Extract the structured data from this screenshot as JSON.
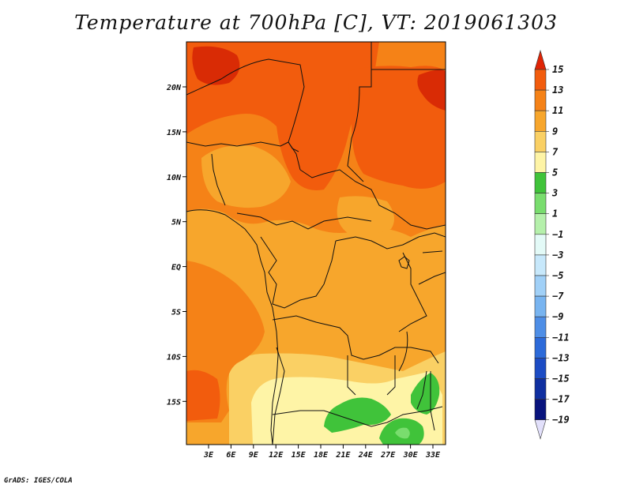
{
  "title": "Temperature at 700hPa [C], VT: 2019061303",
  "credit": "GrADS: IGES/COLA",
  "map": {
    "lat_labels": [
      "20N",
      "15N",
      "10N",
      "5N",
      "EQ",
      "5S",
      "10S",
      "15S"
    ],
    "lon_labels": [
      "3E",
      "6E",
      "9E",
      "12E",
      "15E",
      "18E",
      "21E",
      "24E",
      "27E",
      "30E",
      "33E"
    ],
    "lat_range": [
      -20,
      24
    ],
    "lon_range": [
      0,
      34
    ],
    "variable": "Temperature at 700hPa",
    "units": "C"
  },
  "colorbar": {
    "labels": [
      "15",
      "13",
      "11",
      "9",
      "7",
      "5",
      "3",
      "1",
      "−1",
      "−3",
      "−5",
      "−7",
      "−9",
      "−11",
      "−13",
      "−15",
      "−17",
      "−19"
    ],
    "colors": [
      "#d92b05",
      "#f25c0d",
      "#f58217",
      "#f7a62c",
      "#fad064",
      "#fef4a6",
      "#40c33a",
      "#79dd6e",
      "#b5f0ab",
      "#e3faf7",
      "#c7e8fb",
      "#a0d0f7",
      "#78b4f0",
      "#4e8ee6",
      "#2c6ad9",
      "#1c4cc4",
      "#0f2fa0",
      "#08137d"
    ],
    "top_arrow_color": "#e02405",
    "bottom_arrow_color": "#e2e0fb"
  }
}
